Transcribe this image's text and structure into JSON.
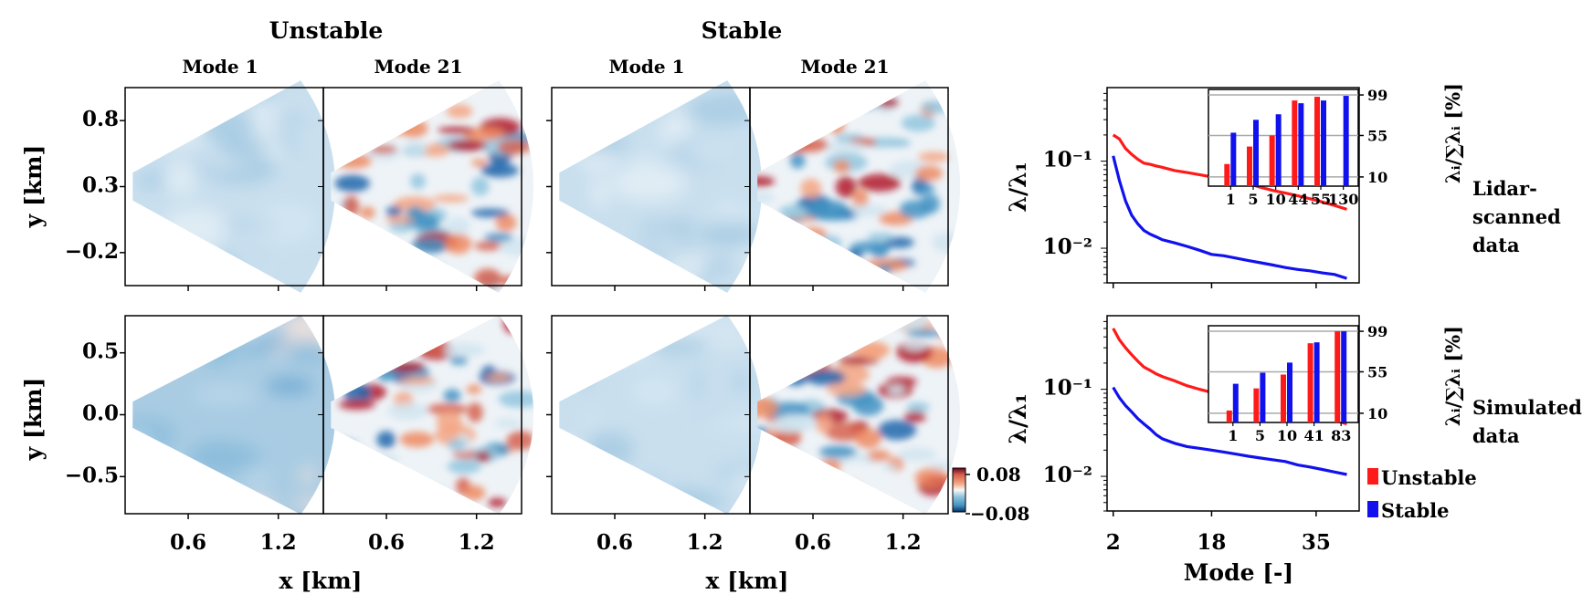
{
  "chart_data": [
    {
      "type": "heatmap",
      "description": "POD mode shapes on lidar sector",
      "group_titles": [
        "Unstable",
        "Stable"
      ],
      "panel_titles": [
        "Mode 1",
        "Mode 21",
        "Mode 1",
        "Mode 21"
      ],
      "row_labels": [
        "y [km]",
        "y [km]"
      ],
      "row0_yticks": [
        "0.8",
        "0.3",
        "−0.2"
      ],
      "row1_yticks": [
        "0.5",
        "0.0",
        "−0.5"
      ],
      "row0_yvals": [
        0.8,
        0.3,
        -0.2
      ],
      "row1_yvals": [
        0.5,
        0.0,
        -0.5
      ],
      "xticks": [
        "0.6",
        "1.2"
      ],
      "xvals": [
        0.6,
        1.2
      ],
      "xlabel": "x [km]",
      "colorbar": {
        "min": -0.08,
        "max": 0.08,
        "labels": [
          "0.08",
          "−0.08"
        ],
        "colormap": "RdBu_r"
      }
    },
    {
      "type": "line",
      "title": "Lidar-scanned data",
      "side_label": [
        "Lidar-",
        "scanned",
        "data"
      ],
      "ylabel": "λ/λ₁",
      "yscale": "log",
      "ylim": [
        0.004,
        0.7
      ],
      "yticks": [
        "10⁻¹",
        "10⁻²"
      ],
      "ytick_vals": [
        0.1,
        0.01
      ],
      "xlim": [
        1,
        42
      ],
      "series": [
        {
          "name": "Unstable",
          "color": "#ff1a1a",
          "x": [
            2,
            3,
            4,
            5,
            6,
            7,
            8,
            9,
            10,
            12,
            14,
            16,
            18,
            20,
            22,
            24,
            26,
            28,
            30,
            32,
            34,
            36,
            38,
            40
          ],
          "y": [
            0.2,
            0.18,
            0.14,
            0.12,
            0.105,
            0.095,
            0.092,
            0.088,
            0.085,
            0.078,
            0.074,
            0.07,
            0.066,
            0.062,
            0.059,
            0.055,
            0.05,
            0.046,
            0.043,
            0.04,
            0.037,
            0.034,
            0.031,
            0.028
          ]
        },
        {
          "name": "Stable",
          "color": "#1111ee",
          "x": [
            2,
            3,
            4,
            5,
            6,
            7,
            8,
            9,
            10,
            12,
            14,
            16,
            18,
            20,
            22,
            24,
            26,
            28,
            30,
            32,
            34,
            36,
            38,
            40
          ],
          "y": [
            0.115,
            0.06,
            0.035,
            0.024,
            0.019,
            0.016,
            0.0145,
            0.0135,
            0.0125,
            0.0115,
            0.0105,
            0.0095,
            0.0085,
            0.0082,
            0.0077,
            0.0072,
            0.0068,
            0.0064,
            0.006,
            0.0057,
            0.0055,
            0.0052,
            0.005,
            0.0045
          ]
        }
      ],
      "inset": {
        "type": "bar",
        "categories": [
          "1",
          "5",
          "10",
          "44",
          "55",
          "130"
        ],
        "ylabel": "λᵢ/∑λᵢ [%]",
        "yticks": [
          "99",
          "55",
          "10"
        ],
        "ytick_vals": [
          99,
          55,
          10
        ],
        "ylim": [
          0,
          100
        ],
        "series": [
          {
            "name": "Unstable",
            "color": "#ff1a1a",
            "values": [
              24,
              43,
              55,
              93,
              97,
              0
            ]
          },
          {
            "name": "Stable",
            "color": "#1111ee",
            "values": [
              58,
              72,
              78,
              90,
              93,
              98
            ]
          }
        ]
      }
    },
    {
      "type": "line",
      "title": "Simulated data",
      "side_label": [
        "Simulated",
        "data"
      ],
      "ylabel": "λ/λ₁",
      "yscale": "log",
      "ylim": [
        0.004,
        0.7
      ],
      "yticks": [
        "10⁻¹",
        "10⁻²"
      ],
      "ytick_vals": [
        0.1,
        0.01
      ],
      "xlim": [
        1,
        42
      ],
      "xticks": [
        "2",
        "18",
        "35"
      ],
      "xtick_vals": [
        2,
        18,
        35
      ],
      "xlabel": "Mode [-]",
      "series": [
        {
          "name": "Unstable",
          "color": "#ff1a1a",
          "x": [
            2,
            3,
            4,
            5,
            6,
            7,
            8,
            9,
            10,
            12,
            14,
            16,
            18,
            20,
            22,
            24,
            26,
            28,
            30,
            32,
            34,
            36,
            38,
            40
          ],
          "y": [
            0.5,
            0.37,
            0.3,
            0.25,
            0.21,
            0.18,
            0.165,
            0.15,
            0.14,
            0.125,
            0.11,
            0.1,
            0.092,
            0.085,
            0.078,
            0.072,
            0.067,
            0.062,
            0.058,
            0.054,
            0.05,
            0.047,
            0.044,
            0.04
          ]
        },
        {
          "name": "Stable",
          "color": "#1111ee",
          "x": [
            2,
            3,
            4,
            5,
            6,
            7,
            8,
            9,
            10,
            12,
            14,
            16,
            18,
            20,
            22,
            24,
            26,
            28,
            30,
            32,
            34,
            36,
            38,
            40
          ],
          "y": [
            0.105,
            0.08,
            0.065,
            0.055,
            0.046,
            0.04,
            0.035,
            0.03,
            0.027,
            0.024,
            0.022,
            0.021,
            0.02,
            0.019,
            0.018,
            0.017,
            0.0162,
            0.0155,
            0.0148,
            0.0135,
            0.0128,
            0.012,
            0.0112,
            0.0105
          ]
        }
      ],
      "inset": {
        "type": "bar",
        "categories": [
          "1",
          "5",
          "10",
          "41",
          "83"
        ],
        "ylabel": "λᵢ/∑λᵢ [%]",
        "yticks": [
          "99",
          "55",
          "10"
        ],
        "ytick_vals": [
          99,
          55,
          10
        ],
        "ylim": [
          0,
          100
        ],
        "series": [
          {
            "name": "Unstable",
            "color": "#ff1a1a",
            "values": [
              13,
              37,
              52,
              86,
              99
            ]
          },
          {
            "name": "Stable",
            "color": "#1111ee",
            "values": [
              42,
              54,
              65,
              87,
              99
            ]
          }
        ]
      }
    }
  ],
  "legend": [
    {
      "label": "Unstable",
      "color": "#ff1a1a"
    },
    {
      "label": "Stable",
      "color": "#1111ee"
    }
  ]
}
